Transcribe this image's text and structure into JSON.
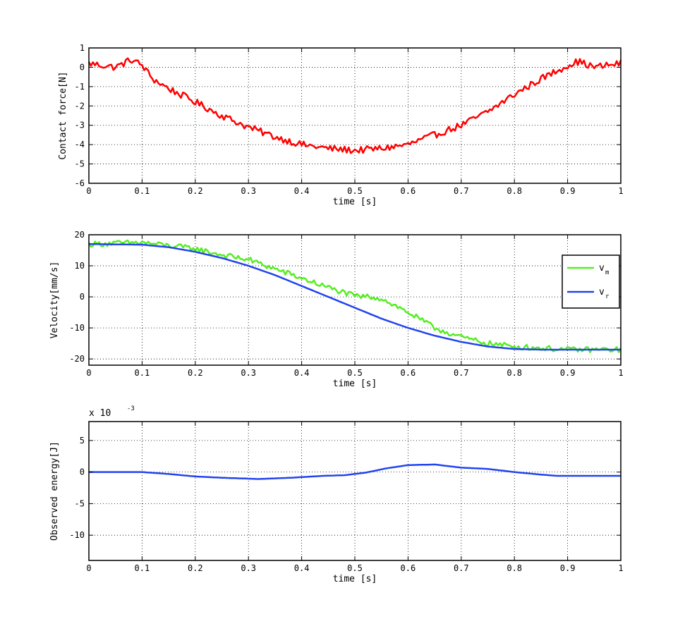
{
  "chart_data": [
    {
      "type": "line",
      "title": "",
      "xlabel": "time [s]",
      "ylabel": "Contact force[N]",
      "xlim": [
        0,
        1
      ],
      "ylim": [
        -6,
        1
      ],
      "xticks": [
        0,
        0.1,
        0.2,
        0.3,
        0.4,
        0.5,
        0.6,
        0.7,
        0.8,
        0.9,
        1
      ],
      "xtick_labels": [
        "0",
        "0.1",
        "0.2",
        "0.3",
        "0.4",
        "0.5",
        "0.6",
        "0.7",
        "0.8",
        "0.9",
        "1"
      ],
      "yticks": [
        -6,
        -5,
        -4,
        -3,
        -2,
        -1,
        0,
        1
      ],
      "ytick_labels": [
        "-6",
        "-5",
        "-4",
        "-3",
        "-2",
        "-1",
        "0",
        "1"
      ],
      "grid": true,
      "legend": null,
      "series": [
        {
          "color": "#ff0000",
          "x": [
            0,
            0.05,
            0.08,
            0.1,
            0.12,
            0.15,
            0.2,
            0.25,
            0.3,
            0.35,
            0.4,
            0.45,
            0.5,
            0.55,
            0.6,
            0.65,
            0.7,
            0.75,
            0.8,
            0.85,
            0.9,
            0.92,
            0.95,
            1
          ],
          "y": [
            0.2,
            0.0,
            0.4,
            0.1,
            -0.6,
            -1.1,
            -1.8,
            -2.5,
            -3.1,
            -3.6,
            -4.0,
            -4.2,
            -4.3,
            -4.2,
            -4.0,
            -3.5,
            -3.0,
            -2.3,
            -1.4,
            -0.6,
            0.1,
            0.3,
            0.0,
            0.2
          ],
          "noise": 0.18
        }
      ]
    },
    {
      "type": "line",
      "title": "",
      "xlabel": "time [s]",
      "ylabel": "Velocity[mm/s]",
      "xlim": [
        0,
        1
      ],
      "ylim": [
        -22,
        20
      ],
      "xticks": [
        0,
        0.1,
        0.2,
        0.3,
        0.4,
        0.5,
        0.6,
        0.7,
        0.8,
        0.9,
        1
      ],
      "xtick_labels": [
        "0",
        "0.1",
        "0.2",
        "0.3",
        "0.4",
        "0.5",
        "0.6",
        "0.7",
        "0.8",
        "0.9",
        "1"
      ],
      "yticks": [
        -20,
        -10,
        0,
        10,
        20
      ],
      "ytick_labels": [
        "-20",
        "-10",
        "0",
        "10",
        "20"
      ],
      "grid": true,
      "legend": "right",
      "series": [
        {
          "name": "v",
          "subscript": "m",
          "color": "#55ee22",
          "x": [
            0,
            0.1,
            0.2,
            0.25,
            0.3,
            0.35,
            0.4,
            0.45,
            0.5,
            0.53,
            0.55,
            0.6,
            0.65,
            0.7,
            0.75,
            0.8,
            0.85,
            0.9,
            0.95,
            1
          ],
          "y": [
            17,
            17.5,
            15.5,
            13.5,
            12,
            9,
            6,
            3,
            0.2,
            0,
            -0.5,
            -5,
            -10,
            -13,
            -15,
            -16,
            -16.5,
            -17,
            -17,
            -17
          ],
          "noise": 0.9
        },
        {
          "name": "v",
          "subscript": "r",
          "color": "#2244ee",
          "x": [
            0,
            0.1,
            0.15,
            0.2,
            0.25,
            0.3,
            0.35,
            0.4,
            0.45,
            0.5,
            0.55,
            0.6,
            0.65,
            0.7,
            0.75,
            0.8,
            0.85,
            0.9,
            1
          ],
          "y": [
            17,
            16.8,
            16,
            14.5,
            12.5,
            10,
            7,
            3.5,
            0,
            -3.5,
            -7,
            -10,
            -12.5,
            -14.5,
            -16,
            -16.8,
            -17,
            -17,
            -17
          ],
          "noise": 0
        }
      ]
    },
    {
      "type": "line",
      "title": "",
      "xlabel": "time [s]",
      "ylabel": "Observed energy[J]",
      "exponent_label": "x 10",
      "exponent_power": "-3",
      "xlim": [
        0,
        1
      ],
      "ylim": [
        -14,
        8
      ],
      "xticks": [
        0,
        0.1,
        0.2,
        0.3,
        0.4,
        0.5,
        0.6,
        0.7,
        0.8,
        0.9,
        1
      ],
      "xtick_labels": [
        "0",
        "0.1",
        "0.2",
        "0.3",
        "0.4",
        "0.5",
        "0.6",
        "0.7",
        "0.8",
        "0.9",
        "1"
      ],
      "yticks": [
        -10,
        -5,
        0,
        5
      ],
      "ytick_labels": [
        "-10",
        "-5",
        "0",
        "5"
      ],
      "grid": true,
      "legend": null,
      "series": [
        {
          "color": "#2244ee",
          "x": [
            0,
            0.1,
            0.15,
            0.2,
            0.25,
            0.32,
            0.38,
            0.44,
            0.48,
            0.52,
            0.56,
            0.6,
            0.65,
            0.67,
            0.7,
            0.75,
            0.8,
            0.85,
            0.88,
            1
          ],
          "y": [
            0,
            0,
            -0.3,
            -0.7,
            -0.9,
            -1.1,
            -0.9,
            -0.6,
            -0.5,
            -0.1,
            0.6,
            1.1,
            1.2,
            1.0,
            0.7,
            0.5,
            0.0,
            -0.4,
            -0.6,
            -0.6
          ],
          "noise": 0
        }
      ]
    }
  ]
}
